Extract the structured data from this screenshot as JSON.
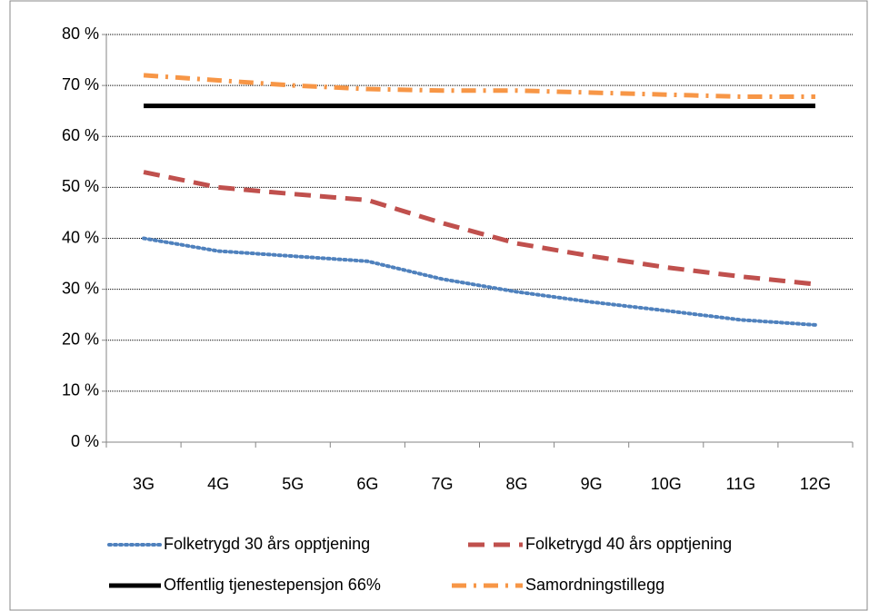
{
  "chart_data": {
    "type": "line",
    "categories": [
      "3G",
      "4G",
      "5G",
      "6G",
      "7G",
      "8G",
      "9G",
      "10G",
      "11G",
      "12G"
    ],
    "series": [
      {
        "name": "Folketrygd 30 års opptjening",
        "color": "#4f81bd",
        "dash": "dotted",
        "values": [
          40,
          37.5,
          36.5,
          35.5,
          32,
          29.5,
          27.5,
          25.8,
          24,
          23
        ]
      },
      {
        "name": "Folketrygd 40 års opptjening",
        "color": "#c0504d",
        "dash": "dashed",
        "values": [
          53,
          50,
          48.7,
          47.5,
          43,
          39,
          36.5,
          34.3,
          32.5,
          31
        ]
      },
      {
        "name": "Offentlig tjenestepensjon 66%",
        "color": "#000000",
        "dash": "solid",
        "values": [
          66,
          66,
          66,
          66,
          66,
          66,
          66,
          66,
          66,
          66
        ]
      },
      {
        "name": "Samordningstillegg",
        "color": "#f79646",
        "dash": "dashdot",
        "values": [
          72,
          71,
          70,
          69.3,
          69,
          69,
          68.6,
          68.2,
          67.8,
          67.8
        ]
      }
    ],
    "ylim": [
      0,
      80
    ],
    "yticks": [
      {
        "value": 0,
        "label": "0 %"
      },
      {
        "value": 10,
        "label": "10 %"
      },
      {
        "value": 20,
        "label": "20 %"
      },
      {
        "value": 30,
        "label": "30 %"
      },
      {
        "value": 40,
        "label": "40 %"
      },
      {
        "value": 50,
        "label": "50 %"
      },
      {
        "value": 60,
        "label": "60 %"
      },
      {
        "value": 70,
        "label": "70 %"
      },
      {
        "value": 80,
        "label": "80 %"
      }
    ],
    "grid": true,
    "legend": "bottom"
  }
}
